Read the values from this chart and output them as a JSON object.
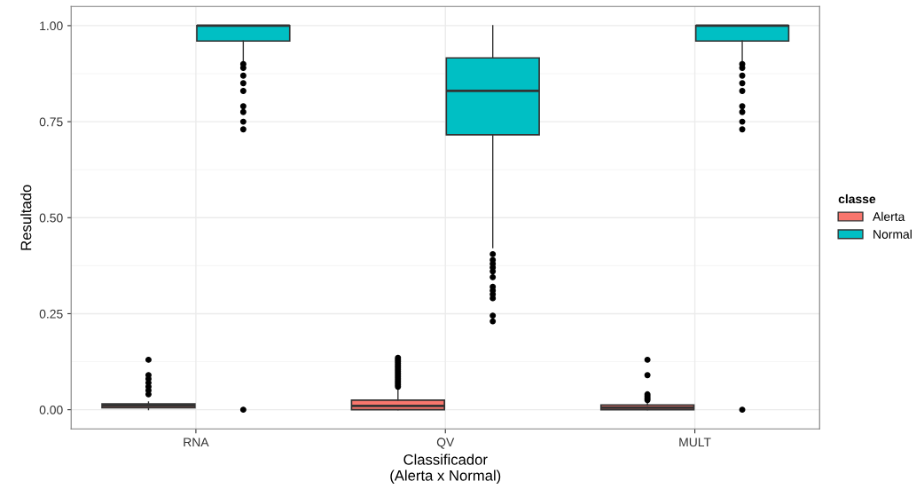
{
  "chart_data": {
    "type": "box",
    "xlabel": "Classificador\n(Alerta x Normal)",
    "ylabel": "Resultado",
    "legend_title": "classe",
    "categories": [
      "RNA",
      "QV",
      "MULT"
    ],
    "series": [
      {
        "name": "Alerta",
        "color": "#f8766d",
        "boxes": [
          {
            "low": 0.0,
            "q1": 0.005,
            "median": 0.01,
            "q3": 0.015,
            "high": 0.02,
            "outliers": [
              0.04,
              0.05,
              0.06,
              0.07,
              0.08,
              0.09,
              0.13
            ]
          },
          {
            "low": 0.0,
            "q1": 0.0,
            "median": 0.01,
            "q3": 0.025,
            "high": 0.055,
            "outliers": [
              0.06,
              0.065,
              0.07,
              0.075,
              0.08,
              0.085,
              0.09,
              0.095,
              0.1,
              0.105,
              0.11,
              0.115,
              0.12,
              0.125,
              0.13,
              0.135
            ]
          },
          {
            "low": 0.0,
            "q1": 0.0,
            "median": 0.005,
            "q3": 0.012,
            "high": 0.02,
            "outliers": [
              0.025,
              0.03,
              0.035,
              0.04,
              0.09,
              0.13
            ]
          }
        ]
      },
      {
        "name": "Normal",
        "color": "#00bfc4",
        "boxes": [
          {
            "low": 0.905,
            "q1": 0.96,
            "median": 1.0,
            "q3": 1.0,
            "high": 1.0,
            "outliers": [
              0.0,
              0.73,
              0.75,
              0.775,
              0.79,
              0.83,
              0.85,
              0.87,
              0.89,
              0.9
            ]
          },
          {
            "low": 0.422,
            "q1": 0.716,
            "median": 0.83,
            "q3": 0.916,
            "high": 1.0,
            "outliers": [
              0.23,
              0.245,
              0.29,
              0.3,
              0.31,
              0.32,
              0.345,
              0.36,
              0.37,
              0.38,
              0.39,
              0.405
            ]
          },
          {
            "low": 0.905,
            "q1": 0.96,
            "median": 1.0,
            "q3": 1.0,
            "high": 1.0,
            "outliers": [
              0.0,
              0.73,
              0.75,
              0.775,
              0.79,
              0.83,
              0.85,
              0.87,
              0.89,
              0.9
            ]
          }
        ]
      }
    ],
    "ylim": [
      -0.05,
      1.05
    ],
    "yticks": [
      {
        "value": 0,
        "label": "0.00"
      },
      {
        "value": 0.25,
        "label": "0.25"
      },
      {
        "value": 0.5,
        "label": "0.50"
      },
      {
        "value": 0.75,
        "label": "0.75"
      },
      {
        "value": 1,
        "label": "1.00"
      }
    ],
    "grid": true,
    "legend": "right"
  }
}
